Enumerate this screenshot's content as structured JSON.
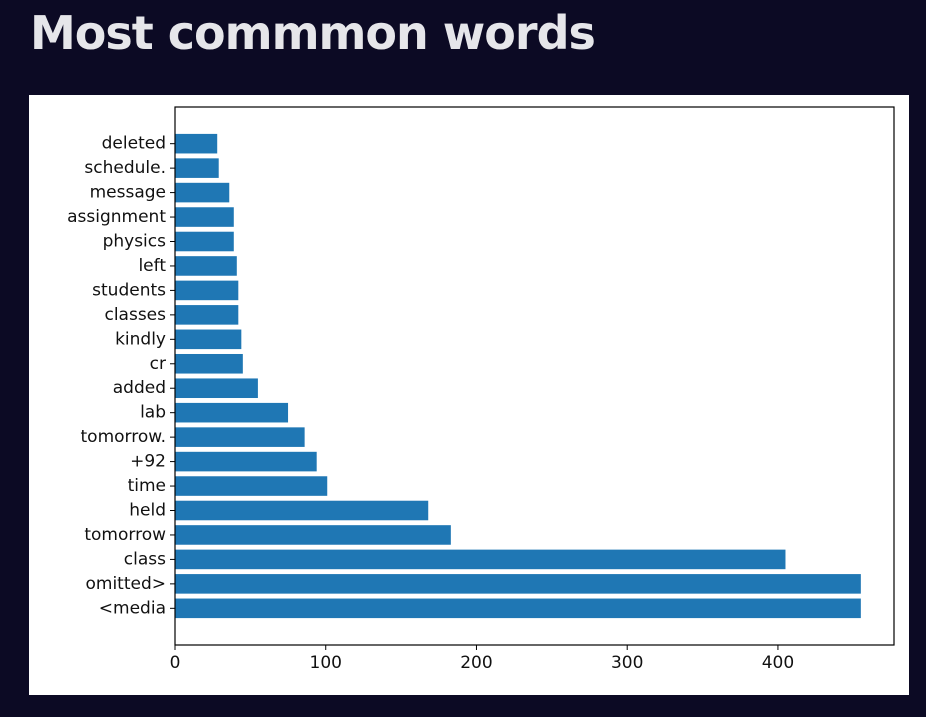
{
  "title": "Most commmon words",
  "colors": {
    "background": "#0c0a24",
    "bar": "#1f77b4",
    "title": "#e6e6ea"
  },
  "chart_data": {
    "type": "bar",
    "orientation": "horizontal",
    "categories": [
      "<media",
      "omitted>",
      "class",
      "tomorrow",
      "held",
      "time",
      "+92",
      "tomorrow.",
      "lab",
      "added",
      "cr",
      "kindly",
      "classes",
      "students",
      "left",
      "physics",
      "assignment",
      "message",
      "schedule.",
      "deleted"
    ],
    "values": [
      455,
      455,
      405,
      183,
      168,
      101,
      94,
      86,
      75,
      55,
      45,
      44,
      42,
      42,
      41,
      39,
      39,
      36,
      29,
      28
    ],
    "xticks": [
      0,
      100,
      200,
      300,
      400
    ],
    "xlim": [
      0,
      477
    ],
    "title": "",
    "xlabel": "",
    "ylabel": "",
    "grid": false
  }
}
